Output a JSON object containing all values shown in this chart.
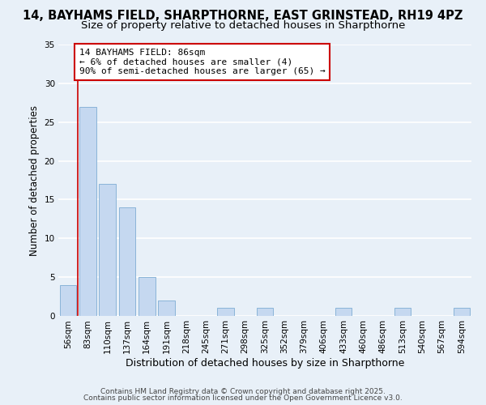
{
  "title": "14, BAYHAMS FIELD, SHARPTHORNE, EAST GRINSTEAD, RH19 4PZ",
  "subtitle": "Size of property relative to detached houses in Sharpthorne",
  "xlabel": "Distribution of detached houses by size in Sharpthorne",
  "ylabel": "Number of detached properties",
  "bin_labels": [
    "56sqm",
    "83sqm",
    "110sqm",
    "137sqm",
    "164sqm",
    "191sqm",
    "218sqm",
    "245sqm",
    "271sqm",
    "298sqm",
    "325sqm",
    "352sqm",
    "379sqm",
    "406sqm",
    "433sqm",
    "460sqm",
    "486sqm",
    "513sqm",
    "540sqm",
    "567sqm",
    "594sqm"
  ],
  "bar_heights": [
    4,
    27,
    17,
    14,
    5,
    2,
    0,
    0,
    1,
    0,
    1,
    0,
    0,
    0,
    1,
    0,
    0,
    1,
    0,
    0,
    1
  ],
  "bar_color": "#c5d8f0",
  "bar_edgecolor": "#8ab4d8",
  "background_color": "#e8f0f8",
  "grid_color": "#ffffff",
  "property_line_color": "#cc0000",
  "ylim": [
    0,
    35
  ],
  "yticks": [
    0,
    5,
    10,
    15,
    20,
    25,
    30,
    35
  ],
  "annotation_title": "14 BAYHAMS FIELD: 86sqm",
  "annotation_line1": "← 6% of detached houses are smaller (4)",
  "annotation_line2": "90% of semi-detached houses are larger (65) →",
  "annotation_box_color": "#ffffff",
  "annotation_border_color": "#cc0000",
  "footer1": "Contains HM Land Registry data © Crown copyright and database right 2025.",
  "footer2": "Contains public sector information licensed under the Open Government Licence v3.0.",
  "title_fontsize": 10.5,
  "subtitle_fontsize": 9.5,
  "xlabel_fontsize": 9,
  "ylabel_fontsize": 8.5,
  "tick_fontsize": 7.5,
  "annotation_fontsize": 8,
  "footer_fontsize": 6.5
}
